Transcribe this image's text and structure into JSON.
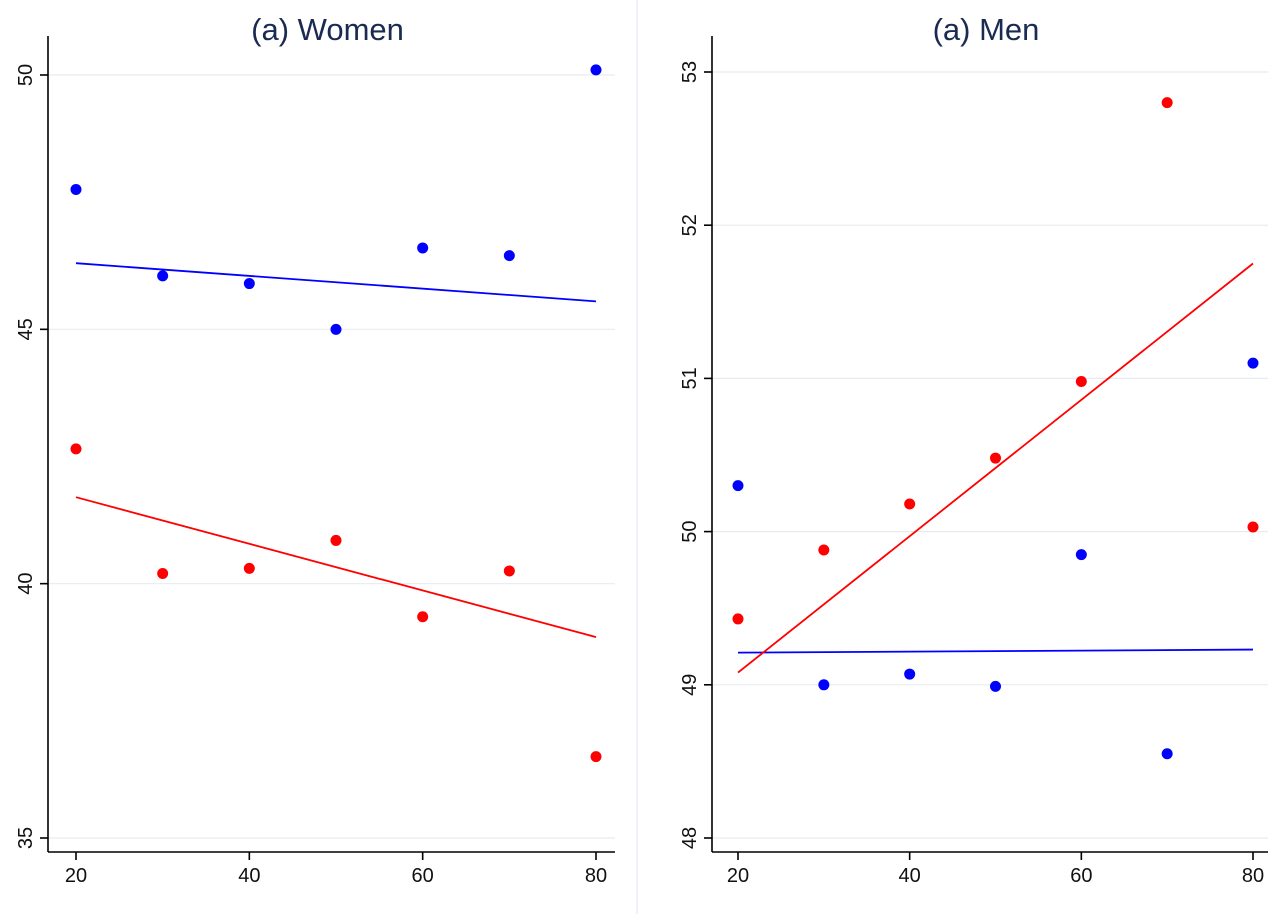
{
  "chart_data": [
    {
      "type": "scatter",
      "title": "(a) Women",
      "xlabel": "",
      "ylabel": "",
      "xlim": [
        20,
        80
      ],
      "ylim": [
        35,
        50
      ],
      "xticks": [
        20,
        40,
        60,
        80
      ],
      "yticks": [
        35,
        40,
        45,
        50
      ],
      "grid": true,
      "series": [
        {
          "color": "#0000ff",
          "points": [
            [
              20,
              47.75
            ],
            [
              30,
              46.05
            ],
            [
              40,
              45.9
            ],
            [
              50,
              45.0
            ],
            [
              60,
              46.6
            ],
            [
              70,
              46.45
            ],
            [
              80,
              50.1
            ]
          ],
          "fit": [
            [
              20,
              46.3
            ],
            [
              80,
              45.55
            ]
          ]
        },
        {
          "color": "#ff0000",
          "points": [
            [
              20,
              42.65
            ],
            [
              30,
              40.2
            ],
            [
              40,
              40.3
            ],
            [
              50,
              40.85
            ],
            [
              60,
              39.35
            ],
            [
              70,
              40.25
            ],
            [
              80,
              36.6
            ]
          ],
          "fit": [
            [
              20,
              41.7
            ],
            [
              80,
              38.95
            ]
          ]
        }
      ]
    },
    {
      "type": "scatter",
      "title": "(a) Men",
      "xlabel": "",
      "ylabel": "",
      "xlim": [
        20,
        80
      ],
      "ylim": [
        48,
        53
      ],
      "xticks": [
        20,
        40,
        60,
        80
      ],
      "yticks": [
        48,
        49,
        50,
        51,
        52,
        53
      ],
      "grid": true,
      "series": [
        {
          "color": "#0000ff",
          "points": [
            [
              20,
              50.3
            ],
            [
              30,
              49.0
            ],
            [
              40,
              49.07
            ],
            [
              50,
              48.99
            ],
            [
              60,
              49.85
            ],
            [
              70,
              48.55
            ],
            [
              80,
              51.1
            ]
          ],
          "fit": [
            [
              20,
              49.21
            ],
            [
              80,
              49.23
            ]
          ]
        },
        {
          "color": "#ff0000",
          "points": [
            [
              20,
              49.43
            ],
            [
              30,
              49.88
            ],
            [
              40,
              50.18
            ],
            [
              50,
              50.48
            ],
            [
              60,
              50.98
            ],
            [
              70,
              52.8
            ],
            [
              80,
              50.03
            ]
          ],
          "fit": [
            [
              20,
              49.08
            ],
            [
              80,
              51.75
            ]
          ]
        }
      ]
    }
  ]
}
